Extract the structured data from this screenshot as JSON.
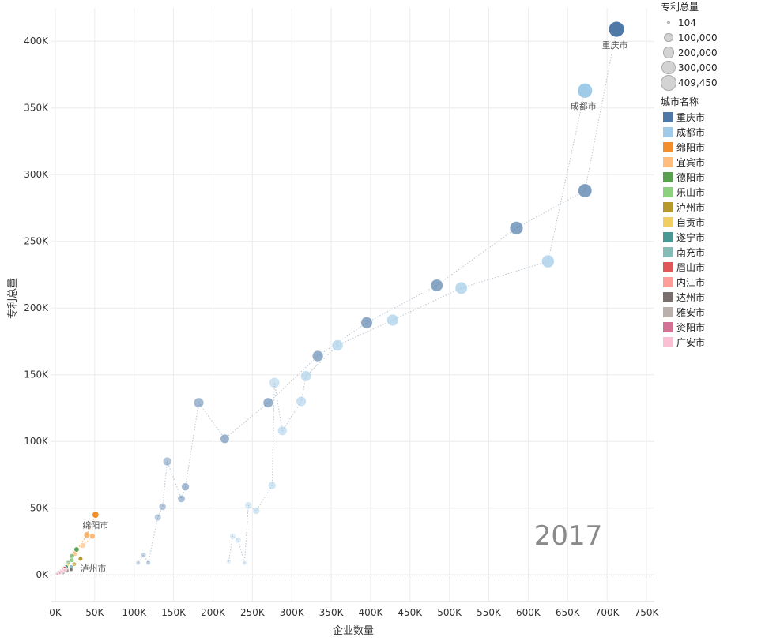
{
  "chart_data": {
    "type": "scatter",
    "year_label": "2017",
    "xlabel": "企业数量",
    "ylabel": "专利总量",
    "xlim": [
      -5000,
      760000
    ],
    "ylim": [
      -20000,
      425000
    ],
    "x_ticks": [
      {
        "v": 0,
        "label": "0K"
      },
      {
        "v": 50000,
        "label": "50K"
      },
      {
        "v": 100000,
        "label": "100K"
      },
      {
        "v": 150000,
        "label": "150K"
      },
      {
        "v": 200000,
        "label": "200K"
      },
      {
        "v": 250000,
        "label": "250K"
      },
      {
        "v": 300000,
        "label": "300K"
      },
      {
        "v": 350000,
        "label": "350K"
      },
      {
        "v": 400000,
        "label": "400K"
      },
      {
        "v": 450000,
        "label": "450K"
      },
      {
        "v": 500000,
        "label": "500K"
      },
      {
        "v": 550000,
        "label": "550K"
      },
      {
        "v": 600000,
        "label": "600K"
      },
      {
        "v": 650000,
        "label": "650K"
      },
      {
        "v": 700000,
        "label": "700K"
      },
      {
        "v": 750000,
        "label": "750K"
      }
    ],
    "y_ticks": [
      {
        "v": 0,
        "label": "0K"
      },
      {
        "v": 50000,
        "label": "50K"
      },
      {
        "v": 100000,
        "label": "100K"
      },
      {
        "v": 150000,
        "label": "150K"
      },
      {
        "v": 200000,
        "label": "200K"
      },
      {
        "v": 250000,
        "label": "250K"
      },
      {
        "v": 300000,
        "label": "300K"
      },
      {
        "v": 350000,
        "label": "350K"
      },
      {
        "v": 400000,
        "label": "400K"
      }
    ],
    "size_max_value": 409450,
    "series": [
      {
        "name": "重庆市",
        "color": "#4e79a7",
        "label": "重庆市",
        "points": [
          [
            105000,
            9000
          ],
          [
            112000,
            15000
          ],
          [
            118000,
            9000
          ],
          [
            130000,
            43000
          ],
          [
            136000,
            51000
          ],
          [
            142000,
            85000
          ],
          [
            160000,
            57000
          ],
          [
            165000,
            66000
          ],
          [
            182000,
            129000
          ],
          [
            215000,
            102000
          ],
          [
            270000,
            129000
          ],
          [
            333000,
            164000
          ],
          [
            395000,
            189000
          ],
          [
            484000,
            217000
          ],
          [
            585000,
            260000
          ],
          [
            672000,
            288000
          ],
          [
            712000,
            409000
          ]
        ]
      },
      {
        "name": "成都市",
        "color": "#a0cbe8",
        "label": "成都市",
        "points": [
          [
            220000,
            10000
          ],
          [
            225000,
            29000
          ],
          [
            232000,
            26000
          ],
          [
            240000,
            9000
          ],
          [
            245000,
            52000
          ],
          [
            255000,
            48000
          ],
          [
            275000,
            67000
          ],
          [
            278000,
            144000
          ],
          [
            288000,
            108000
          ],
          [
            312000,
            130000
          ],
          [
            318000,
            149000
          ],
          [
            358000,
            172000
          ],
          [
            428000,
            191000
          ],
          [
            515000,
            215000
          ],
          [
            625000,
            235000
          ],
          [
            672000,
            363000
          ]
        ]
      },
      {
        "name": "绵阳市",
        "color": "#f28e2b",
        "label": "绵阳市",
        "points": [
          [
            4000,
            2000
          ],
          [
            14000,
            7000
          ],
          [
            25000,
            16000
          ],
          [
            40000,
            30000
          ],
          [
            51000,
            45000
          ]
        ]
      },
      {
        "name": "宜宾市",
        "color": "#ffbe7d",
        "label": "",
        "points": [
          [
            5000,
            2000
          ],
          [
            15000,
            8000
          ],
          [
            26000,
            17000
          ],
          [
            35000,
            22000
          ],
          [
            47000,
            29000
          ]
        ]
      },
      {
        "name": "德阳市",
        "color": "#59a14f",
        "label": "",
        "points": [
          [
            4000,
            2000
          ],
          [
            10000,
            5000
          ],
          [
            16000,
            9000
          ],
          [
            21000,
            14000
          ],
          [
            27000,
            19000
          ]
        ]
      },
      {
        "name": "乐山市",
        "color": "#8cd17d",
        "label": "",
        "points": [
          [
            5000,
            2000
          ],
          [
            11000,
            4000
          ],
          [
            16000,
            8000
          ],
          [
            21000,
            11000
          ]
        ]
      },
      {
        "name": "泸州市",
        "color": "#b6992d",
        "label": "泸州市",
        "points": [
          [
            6000,
            2000
          ],
          [
            12000,
            4000
          ],
          [
            18000,
            6000
          ],
          [
            24000,
            8000
          ],
          [
            32000,
            12000
          ]
        ]
      },
      {
        "name": "自贡市",
        "color": "#f1ce63",
        "label": "",
        "points": [
          [
            3000,
            1000
          ],
          [
            7000,
            3000
          ],
          [
            11000,
            5000
          ],
          [
            15000,
            7000
          ]
        ]
      },
      {
        "name": "遂宁市",
        "color": "#499894",
        "label": "",
        "points": [
          [
            3000,
            1000
          ],
          [
            7000,
            2000
          ],
          [
            11000,
            4000
          ],
          [
            14000,
            6000
          ]
        ]
      },
      {
        "name": "南充市",
        "color": "#86bcb6",
        "label": "",
        "points": [
          [
            5000,
            1000
          ],
          [
            10000,
            2000
          ],
          [
            15000,
            4000
          ],
          [
            20000,
            6000
          ]
        ]
      },
      {
        "name": "眉山市",
        "color": "#e15759",
        "label": "",
        "points": [
          [
            3000,
            1000
          ],
          [
            6000,
            2000
          ],
          [
            9000,
            3000
          ],
          [
            12000,
            5000
          ]
        ]
      },
      {
        "name": "内江市",
        "color": "#ff9d9a",
        "label": "",
        "points": [
          [
            3000,
            1000
          ],
          [
            6000,
            1500
          ],
          [
            10000,
            3000
          ],
          [
            13000,
            4000
          ]
        ]
      },
      {
        "name": "达州市",
        "color": "#79706e",
        "label": "",
        "points": [
          [
            5000,
            800
          ],
          [
            10000,
            1500
          ],
          [
            15000,
            3000
          ],
          [
            20000,
            4000
          ]
        ]
      },
      {
        "name": "雅安市",
        "color": "#bab0ac",
        "label": "",
        "points": [
          [
            2000,
            800
          ],
          [
            4000,
            1500
          ],
          [
            6000,
            2500
          ],
          [
            8000,
            3000
          ]
        ]
      },
      {
        "name": "资阳市",
        "color": "#d37295",
        "label": "",
        "points": [
          [
            2000,
            800
          ],
          [
            5000,
            1500
          ],
          [
            8000,
            2500
          ],
          [
            10000,
            3500
          ]
        ]
      },
      {
        "name": "广安市",
        "color": "#fabfd2",
        "label": "",
        "points": [
          [
            3000,
            800
          ],
          [
            6000,
            1500
          ],
          [
            9000,
            2500
          ],
          [
            12000,
            3500
          ]
        ]
      }
    ]
  },
  "legend": {
    "size_title": "专利总量",
    "size_items": [
      {
        "label": "104",
        "value": 104
      },
      {
        "label": "100,000",
        "value": 100000
      },
      {
        "label": "200,000",
        "value": 200000
      },
      {
        "label": "300,000",
        "value": 300000
      },
      {
        "label": "409,450",
        "value": 409450
      }
    ],
    "color_title": "城市名称",
    "color_items": [
      {
        "label": "重庆市",
        "color": "#4e79a7"
      },
      {
        "label": "成都市",
        "color": "#a0cbe8"
      },
      {
        "label": "绵阳市",
        "color": "#f28e2b"
      },
      {
        "label": "宜宾市",
        "color": "#ffbe7d"
      },
      {
        "label": "德阳市",
        "color": "#59a14f"
      },
      {
        "label": "乐山市",
        "color": "#8cd17d"
      },
      {
        "label": "泸州市",
        "color": "#b6992d"
      },
      {
        "label": "自贡市",
        "color": "#f1ce63"
      },
      {
        "label": "遂宁市",
        "color": "#499894"
      },
      {
        "label": "南充市",
        "color": "#86bcb6"
      },
      {
        "label": "眉山市",
        "color": "#e15759"
      },
      {
        "label": "内江市",
        "color": "#ff9d9a"
      },
      {
        "label": "达州市",
        "color": "#79706e"
      },
      {
        "label": "雅安市",
        "color": "#bab0ac"
      },
      {
        "label": "资阳市",
        "color": "#d37295"
      },
      {
        "label": "广安市",
        "color": "#fabfd2"
      }
    ]
  }
}
